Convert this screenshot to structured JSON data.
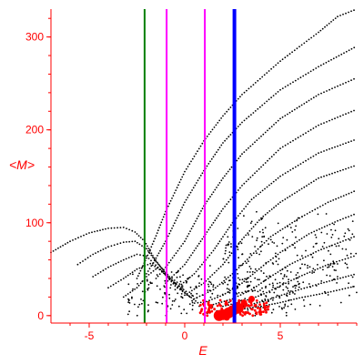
{
  "chart_data": {
    "type": "scatter",
    "title": "",
    "xlabel": "E",
    "ylabel": "<M>",
    "xlim": [
      -7,
      9
    ],
    "ylim": [
      -8,
      330
    ],
    "grid": false,
    "legend": "none",
    "x_ticks": [
      {
        "value": -5,
        "label": "-5"
      },
      {
        "value": 0,
        "label": "0"
      },
      {
        "value": 5,
        "label": "5"
      }
    ],
    "y_ticks": [
      {
        "value": 0,
        "label": "0"
      },
      {
        "value": 100,
        "label": "100"
      },
      {
        "value": 200,
        "label": "200"
      },
      {
        "value": 300,
        "label": "300"
      }
    ],
    "vertical_lines": [
      {
        "x": -2.1,
        "color": "#008000",
        "width": 2
      },
      {
        "x": -0.95,
        "color": "#ff00ff",
        "width": 2
      },
      {
        "x": 1.05,
        "color": "#ff00ff",
        "width": 2
      },
      {
        "x": 2.6,
        "color": "#0000ff",
        "width": 4
      }
    ],
    "series": [
      {
        "color": "#000000",
        "kind": "curve",
        "points": [
          [
            -7,
            68
          ],
          [
            -6,
            80
          ],
          [
            -5,
            89
          ],
          [
            -4,
            94
          ],
          [
            -3.2,
            95
          ],
          [
            -2.6,
            90
          ],
          [
            -2.1,
            80
          ],
          [
            -1.6,
            62
          ],
          [
            -1,
            45
          ],
          [
            -0.4,
            33
          ]
        ]
      },
      {
        "color": "#000000",
        "kind": "curve",
        "points": [
          [
            -5.6,
            55
          ],
          [
            -4.8,
            66
          ],
          [
            -4,
            74
          ],
          [
            -3.2,
            79
          ],
          [
            -2.6,
            80
          ],
          [
            -2,
            72
          ],
          [
            -1.5,
            58
          ],
          [
            -0.8,
            42
          ],
          [
            0,
            30
          ]
        ]
      },
      {
        "color": "#000000",
        "kind": "curve",
        "points": [
          [
            -4.8,
            42
          ],
          [
            -4,
            52
          ],
          [
            -3.2,
            60
          ],
          [
            -2.5,
            66
          ],
          [
            -2,
            64
          ],
          [
            -1.4,
            52
          ],
          [
            -0.7,
            38
          ],
          [
            0.2,
            24
          ]
        ]
      },
      {
        "color": "#000000",
        "kind": "curve",
        "points": [
          [
            -4,
            30
          ],
          [
            -3.2,
            40
          ],
          [
            -2.5,
            50
          ],
          [
            -1.8,
            56
          ],
          [
            -1.2,
            48
          ],
          [
            -0.5,
            32
          ],
          [
            0.4,
            18
          ]
        ]
      },
      {
        "color": "#000000",
        "kind": "curve",
        "points": [
          [
            -3.2,
            20
          ],
          [
            -2.5,
            30
          ],
          [
            -2,
            42
          ],
          [
            -1.4,
            52
          ],
          [
            -0.8,
            40
          ],
          [
            0,
            25
          ],
          [
            0.8,
            12
          ]
        ]
      },
      {
        "color": "#000000",
        "kind": "curve",
        "points": [
          [
            -2.5,
            40
          ],
          [
            -2,
            62
          ],
          [
            -1.5,
            86
          ],
          [
            -1,
            112
          ],
          [
            0,
            155
          ],
          [
            1,
            188
          ],
          [
            2,
            215
          ],
          [
            3,
            238
          ],
          [
            5,
            274
          ],
          [
            7,
            305
          ],
          [
            8,
            322
          ],
          [
            9,
            330
          ]
        ]
      },
      {
        "color": "#000000",
        "kind": "curve",
        "points": [
          [
            -2,
            45
          ],
          [
            -1.5,
            62
          ],
          [
            -1,
            80
          ],
          [
            0,
            122
          ],
          [
            1,
            156
          ],
          [
            2,
            186
          ],
          [
            3,
            208
          ],
          [
            5,
            243
          ],
          [
            7,
            268
          ],
          [
            9,
            290
          ]
        ]
      },
      {
        "color": "#000000",
        "kind": "curve",
        "points": [
          [
            -1.5,
            40
          ],
          [
            -1,
            52
          ],
          [
            0,
            80
          ],
          [
            1,
            118
          ],
          [
            2,
            148
          ],
          [
            3,
            174
          ],
          [
            5,
            212
          ],
          [
            7,
            238
          ],
          [
            9,
            256
          ]
        ]
      },
      {
        "color": "#000000",
        "kind": "curve",
        "points": [
          [
            -1,
            35
          ],
          [
            0,
            55
          ],
          [
            1,
            85
          ],
          [
            2,
            115
          ],
          [
            3,
            140
          ],
          [
            5,
            180
          ],
          [
            7,
            205
          ],
          [
            9,
            222
          ]
        ]
      },
      {
        "color": "#000000",
        "kind": "curve",
        "points": [
          [
            -0.5,
            28
          ],
          [
            0.5,
            45
          ],
          [
            1.5,
            70
          ],
          [
            2.5,
            100
          ],
          [
            3.5,
            125
          ],
          [
            5,
            150
          ],
          [
            7,
            175
          ],
          [
            9,
            190
          ]
        ]
      },
      {
        "color": "#000000",
        "kind": "curve",
        "points": [
          [
            0,
            22
          ],
          [
            1,
            35
          ],
          [
            2,
            55
          ],
          [
            3,
            82
          ],
          [
            4,
            105
          ],
          [
            5,
            122
          ],
          [
            7,
            148
          ],
          [
            9,
            162
          ]
        ]
      },
      {
        "color": "#000000",
        "kind": "curve",
        "points": [
          [
            0.5,
            18
          ],
          [
            1.5,
            28
          ],
          [
            2.5,
            45
          ],
          [
            3.5,
            65
          ],
          [
            4.5,
            85
          ],
          [
            6,
            105
          ],
          [
            7.5,
            122
          ],
          [
            9,
            135
          ]
        ]
      },
      {
        "color": "#000000",
        "kind": "curve",
        "points": [
          [
            1,
            14
          ],
          [
            2,
            22
          ],
          [
            3,
            35
          ],
          [
            4,
            52
          ],
          [
            5,
            68
          ],
          [
            6.5,
            88
          ],
          [
            8,
            102
          ],
          [
            9,
            110
          ]
        ]
      },
      {
        "color": "#000000",
        "kind": "curve",
        "points": [
          [
            1.5,
            12
          ],
          [
            2.5,
            18
          ],
          [
            3.5,
            28
          ],
          [
            4.5,
            42
          ],
          [
            5.5,
            55
          ],
          [
            7,
            70
          ],
          [
            9,
            86
          ]
        ]
      },
      {
        "color": "#000000",
        "kind": "curve",
        "points": [
          [
            2,
            10
          ],
          [
            3,
            15
          ],
          [
            4,
            22
          ],
          [
            5,
            32
          ],
          [
            6,
            42
          ],
          [
            7.5,
            55
          ],
          [
            9,
            65
          ]
        ]
      },
      {
        "color": "#000000",
        "kind": "curve",
        "points": [
          [
            2.5,
            8
          ],
          [
            3.5,
            12
          ],
          [
            4.5,
            18
          ],
          [
            5.5,
            25
          ],
          [
            7,
            34
          ],
          [
            9,
            45
          ]
        ]
      },
      {
        "color": "#000000",
        "kind": "curve",
        "points": [
          [
            3,
            7
          ],
          [
            4,
            10
          ],
          [
            5,
            14
          ],
          [
            6,
            19
          ],
          [
            7.5,
            25
          ],
          [
            9,
            32
          ]
        ]
      },
      {
        "color": "#000000",
        "kind": "cloud",
        "center": [
          1.5,
          25
        ],
        "spread": [
          4.5,
          30
        ],
        "count": 260
      },
      {
        "color": "#000000",
        "kind": "cloud",
        "center": [
          5.5,
          60
        ],
        "spread": [
          3.5,
          60
        ],
        "count": 220
      },
      {
        "color": "#ff0000",
        "kind": "cloud",
        "center": [
          2.6,
          8
        ],
        "spread": [
          1.8,
          10
        ],
        "count": 130
      },
      {
        "color": "#ff0000",
        "kind": "blob",
        "points": [
          [
            2,
            1
          ],
          [
            2.3,
            3
          ],
          [
            2.5,
            5
          ],
          [
            1.8,
            0
          ],
          [
            2.8,
            8
          ],
          [
            2.2,
            -2
          ],
          [
            3.1,
            14
          ],
          [
            3.5,
            18
          ]
        ]
      }
    ]
  }
}
